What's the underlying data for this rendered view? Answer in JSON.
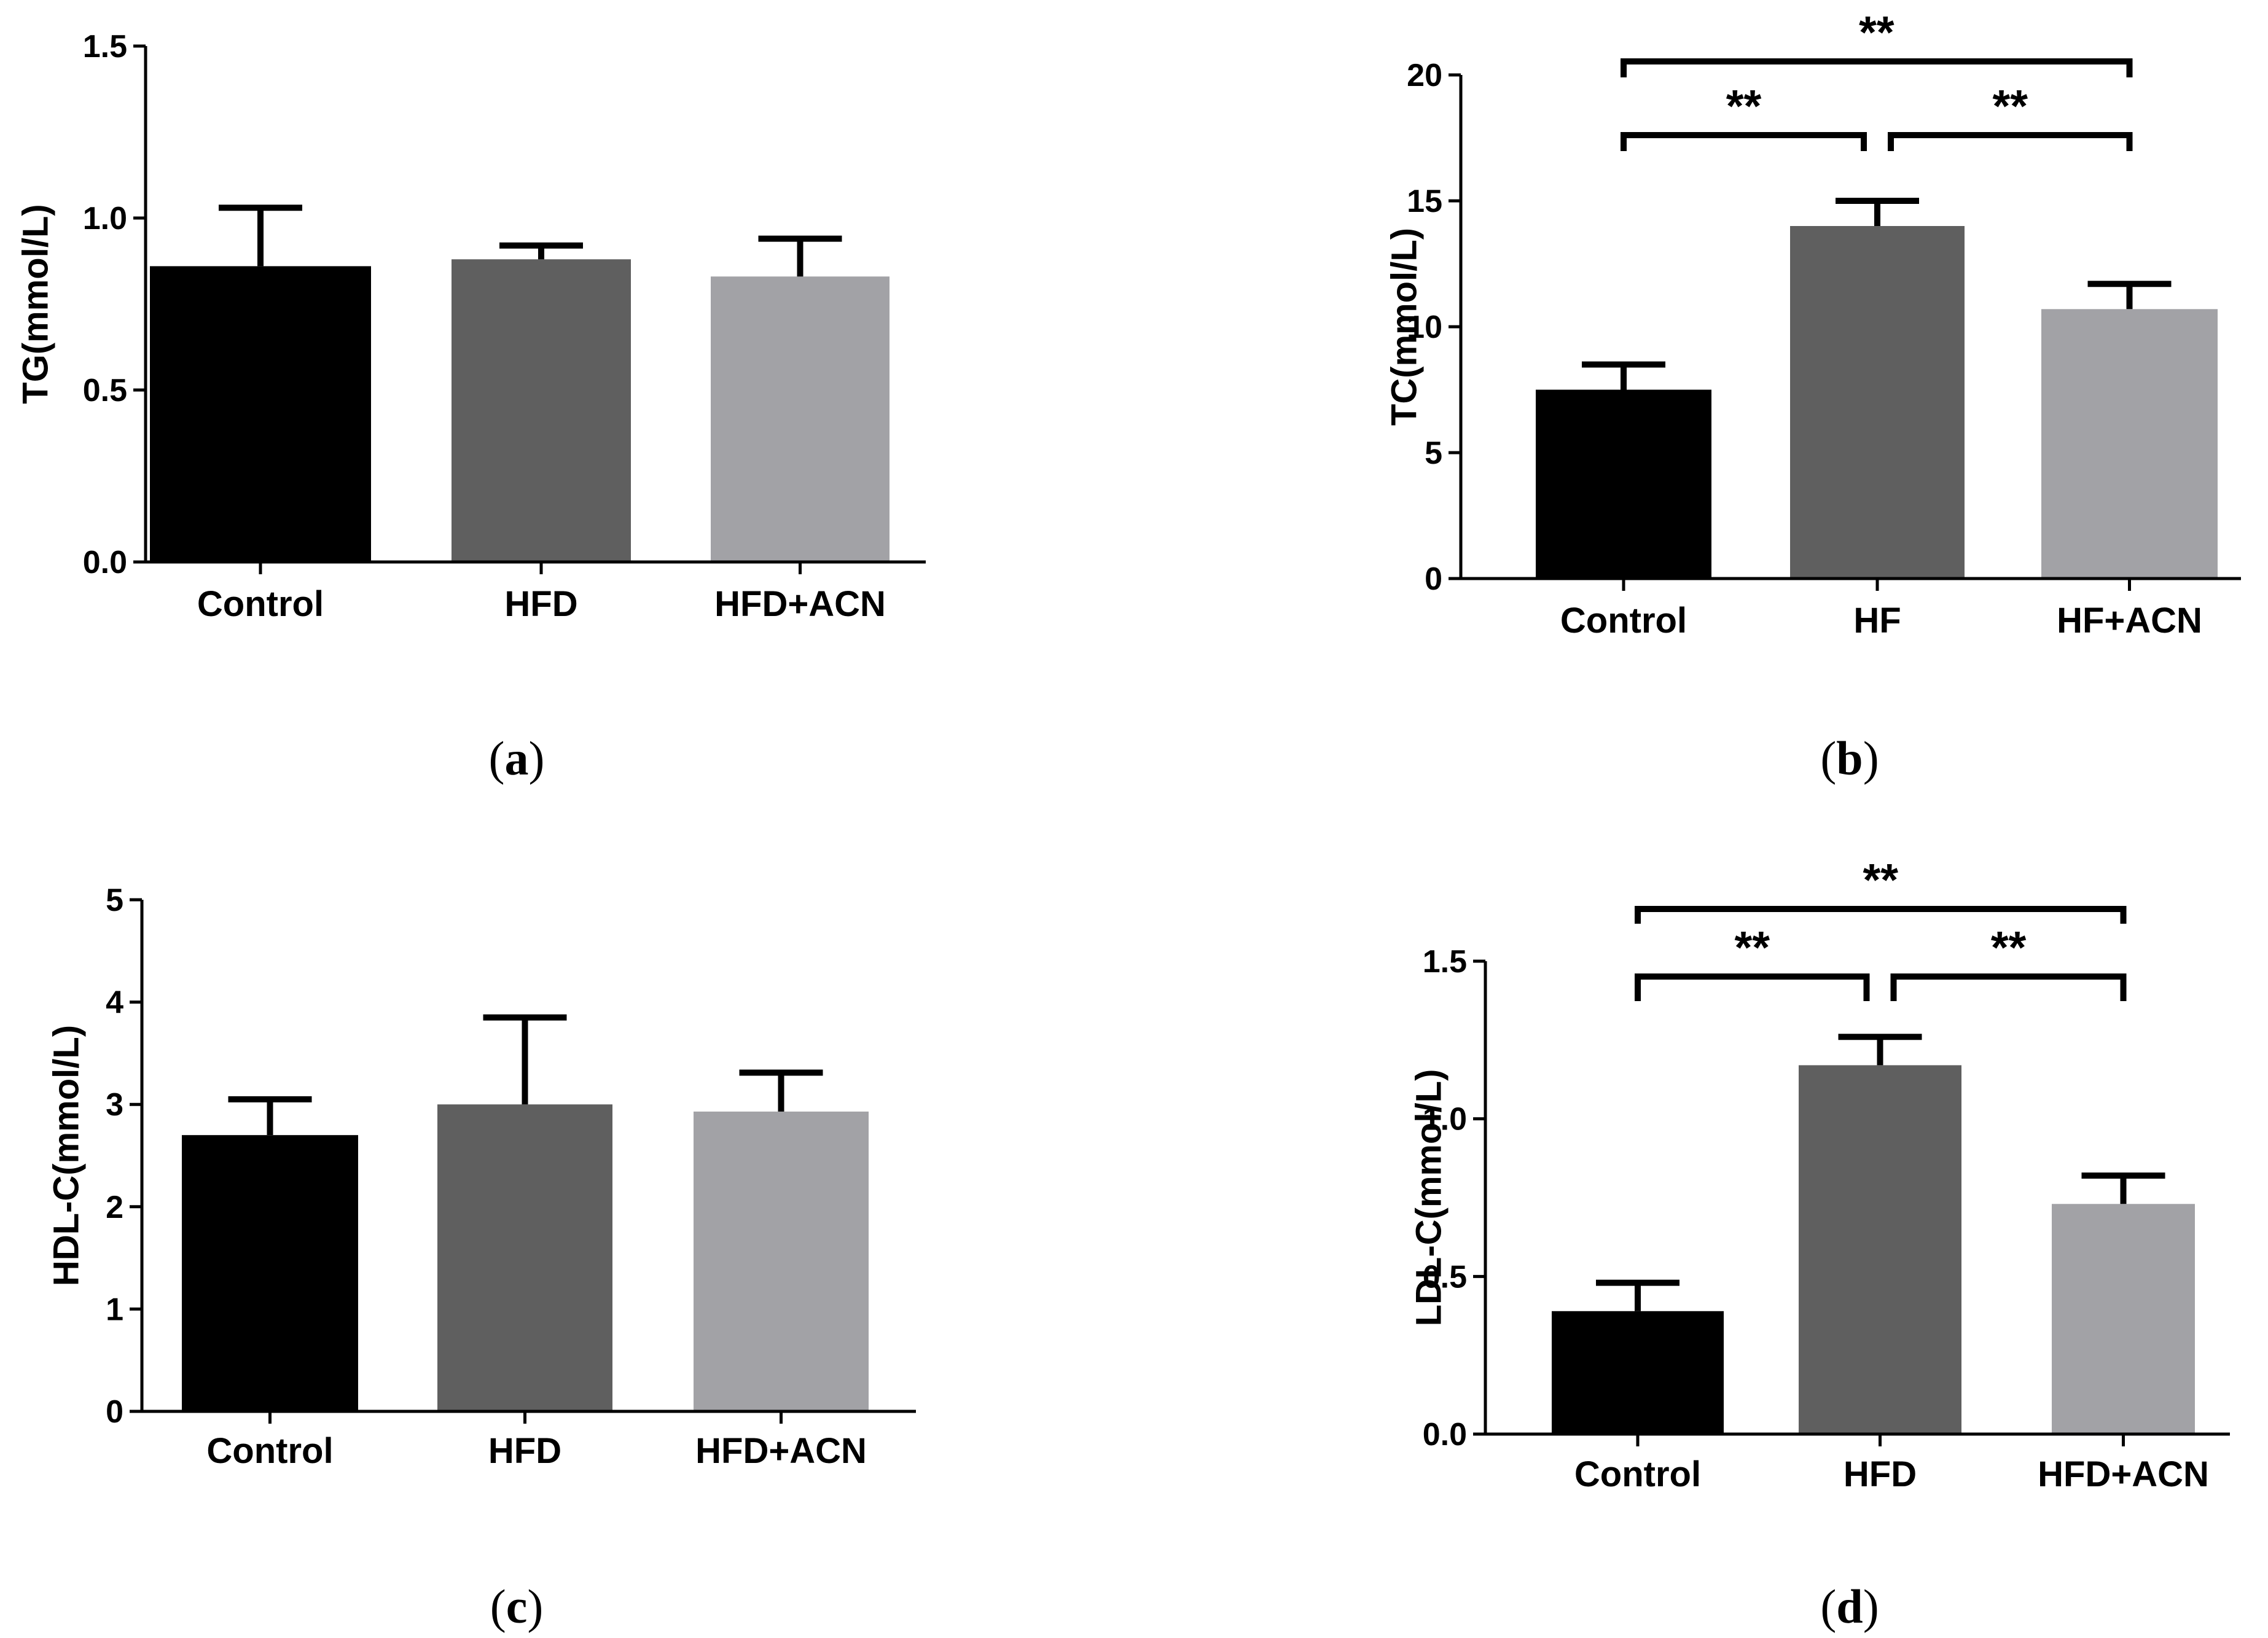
{
  "chart_data": [
    {
      "type": "bar",
      "panel": "(a)",
      "ylabel": "TG(mmol/L)",
      "categories": [
        "Control",
        "HFD",
        "HFD+ACN"
      ],
      "values": [
        0.86,
        0.88,
        0.83
      ],
      "errors": [
        0.17,
        0.04,
        0.11
      ],
      "colors": [
        "#000000",
        "#5f5f5f",
        "#a2a2a6"
      ],
      "ylim": [
        0,
        1.5
      ],
      "yticks": [
        0.0,
        0.5,
        1.0,
        1.5
      ],
      "ytick_labels": [
        "0.0",
        "0.5",
        "1.0",
        "1.5"
      ],
      "significance": []
    },
    {
      "type": "bar",
      "panel": "(b)",
      "ylabel": "TC(mmol/L)",
      "categories": [
        "Control",
        "HF",
        "HF+ACN"
      ],
      "values": [
        7.5,
        14.0,
        10.7
      ],
      "errors": [
        1.0,
        1.0,
        1.0
      ],
      "colors": [
        "#000000",
        "#5f5f5f",
        "#a2a2a6"
      ],
      "ylim": [
        0,
        20
      ],
      "yticks": [
        0,
        5,
        10,
        15,
        20
      ],
      "ytick_labels": [
        "0",
        "5",
        "10",
        "15",
        "20"
      ],
      "significance": [
        {
          "from": 0,
          "to": 1,
          "label": "**"
        },
        {
          "from": 1,
          "to": 2,
          "label": "**"
        },
        {
          "from": 0,
          "to": 2,
          "label": "**"
        }
      ]
    },
    {
      "type": "bar",
      "panel": "(c)",
      "ylabel": "HDL-C(mmol/L)",
      "categories": [
        "Control",
        "HFD",
        "HFD+ACN"
      ],
      "values": [
        2.7,
        3.0,
        2.93
      ],
      "errors": [
        0.35,
        0.85,
        0.38
      ],
      "colors": [
        "#000000",
        "#5f5f5f",
        "#a2a2a6"
      ],
      "ylim": [
        0,
        5
      ],
      "yticks": [
        0,
        1,
        2,
        3,
        4,
        5
      ],
      "ytick_labels": [
        "0",
        "1",
        "2",
        "3",
        "4",
        "5"
      ],
      "significance": []
    },
    {
      "type": "bar",
      "panel": "(d)",
      "ylabel": "LDL-C(mmol/L)",
      "categories": [
        "Control",
        "HFD",
        "HFD+ACN"
      ],
      "values": [
        0.39,
        1.17,
        0.73
      ],
      "errors": [
        0.09,
        0.09,
        0.09
      ],
      "colors": [
        "#000000",
        "#5f5f5f",
        "#a2a2a6"
      ],
      "ylim": [
        0,
        1.5
      ],
      "yticks": [
        0.0,
        0.5,
        1.0,
        1.5
      ],
      "ytick_labels": [
        "0.0",
        "0.5",
        "1.0",
        "1.5"
      ],
      "significance": [
        {
          "from": 0,
          "to": 1,
          "label": "**"
        },
        {
          "from": 1,
          "to": 2,
          "label": "**"
        },
        {
          "from": 0,
          "to": 2,
          "label": "**"
        }
      ]
    }
  ]
}
